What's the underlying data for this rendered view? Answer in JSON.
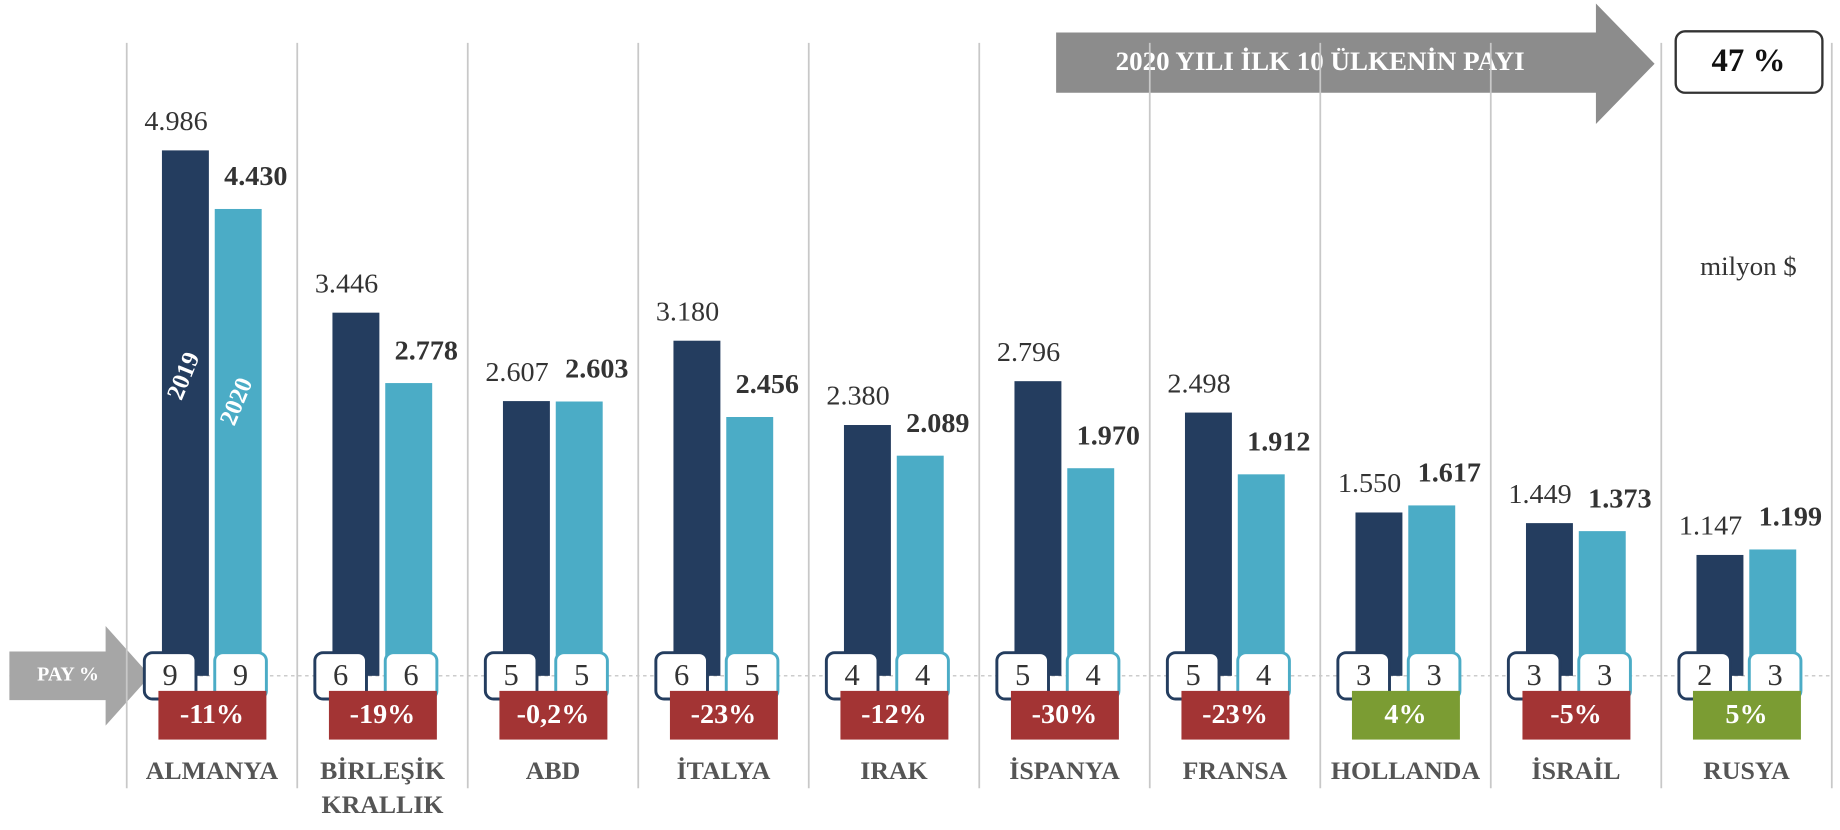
{
  "chart_data": {
    "type": "bar",
    "unit": "milyon $",
    "categories": [
      "ALMANYA",
      "BİRLEŞİK KRALLIK",
      "ABD",
      "İTALYA",
      "IRAK",
      "İSPANYA",
      "FRANSA",
      "HOLLANDA",
      "İSRAİL",
      "RUSYA"
    ],
    "series": [
      {
        "name": "2019",
        "color": "#243d5f",
        "values": [
          4986,
          3446,
          2607,
          3180,
          2380,
          2796,
          2498,
          1550,
          1449,
          1147
        ],
        "value_labels": [
          "4.986",
          "3.446",
          "2.607",
          "3.180",
          "2.380",
          "2.796",
          "2.498",
          "1.550",
          "1.449",
          "1.147"
        ],
        "shares": [
          9,
          6,
          5,
          6,
          4,
          5,
          5,
          3,
          3,
          2
        ]
      },
      {
        "name": "2020",
        "color": "#4bacc6",
        "values": [
          4430,
          2778,
          2603,
          2456,
          2089,
          1970,
          1912,
          1617,
          1373,
          1199
        ],
        "value_labels": [
          "4.430",
          "2.778",
          "2.603",
          "2.456",
          "2.089",
          "1.970",
          "1.912",
          "1.617",
          "1.373",
          "1.199"
        ],
        "shares": [
          9,
          6,
          5,
          5,
          4,
          4,
          4,
          3,
          3,
          3
        ]
      }
    ],
    "share_label": "PAY %",
    "changes": [
      -11,
      -19,
      -0.2,
      -23,
      -12,
      -30,
      -23,
      4,
      -5,
      5
    ],
    "change_labels": [
      "-11%",
      "-19%",
      "-0,2%",
      "-23%",
      "-12%",
      "-30%",
      "-23%",
      "4%",
      "-5%",
      "5%"
    ],
    "change_colors": {
      "negative": "#a33434",
      "positive": "#7b9c33"
    },
    "annotation": "2020 YILI İLK 10 ÜLKENİN PAYI",
    "annotation_value": {
      "value": 47,
      "label": "47 %"
    },
    "ylim": [
      0,
      5500
    ]
  }
}
